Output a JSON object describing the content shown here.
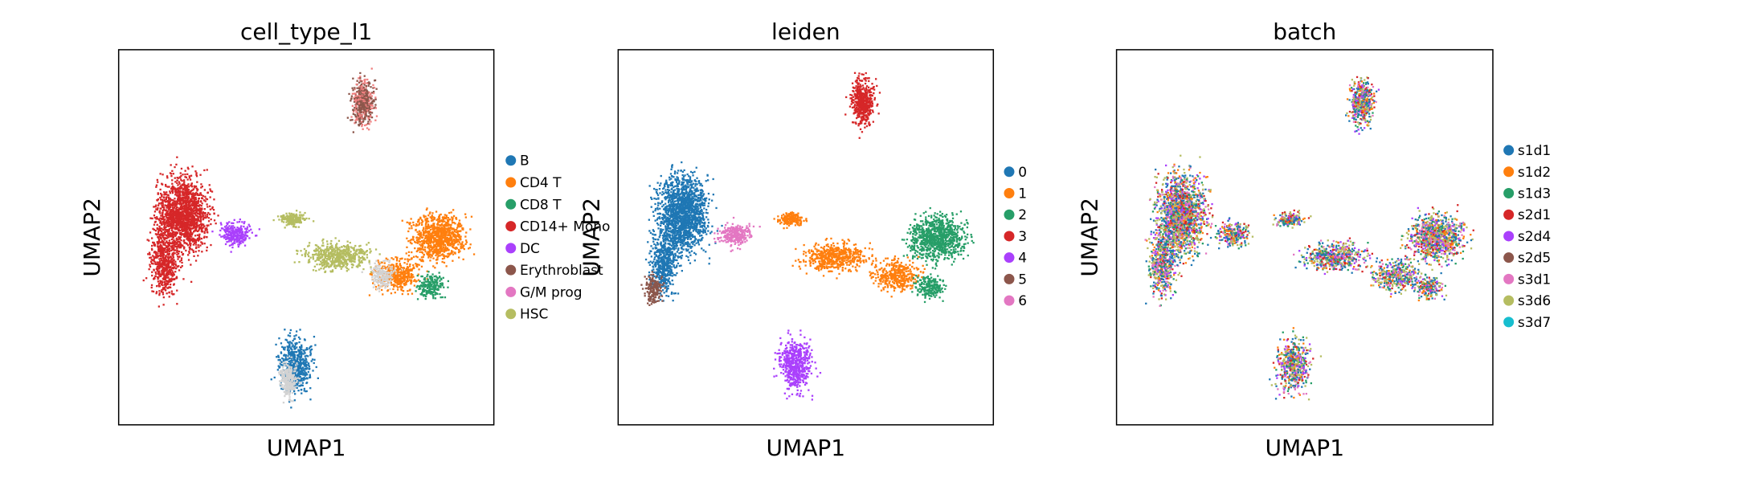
{
  "chart_data": [
    {
      "type": "scatter",
      "title": "cell_type_l1",
      "xlabel": "UMAP1",
      "ylabel": "UMAP2",
      "grid": false,
      "ticks": false,
      "legend_placement": "right",
      "legend": [
        {
          "label": "B",
          "color": "#1f77b4"
        },
        {
          "label": "CD4 T",
          "color": "#ff7f0e"
        },
        {
          "label": "CD8 T",
          "color": "#279e68"
        },
        {
          "label": "CD14+ Mono",
          "color": "#d62728"
        },
        {
          "label": "DC",
          "color": "#aa40fc"
        },
        {
          "label": "Erythroblast",
          "color": "#8c564b"
        },
        {
          "label": "G/M prog",
          "color": "#e377c2"
        },
        {
          "label": "HSC",
          "color": "#b5bd61"
        }
      ]
    },
    {
      "type": "scatter",
      "title": "leiden",
      "xlabel": "UMAP1",
      "ylabel": "UMAP2",
      "grid": false,
      "ticks": false,
      "legend_placement": "right",
      "legend": [
        {
          "label": "0",
          "color": "#1f77b4"
        },
        {
          "label": "1",
          "color": "#ff7f0e"
        },
        {
          "label": "2",
          "color": "#279e68"
        },
        {
          "label": "3",
          "color": "#d62728"
        },
        {
          "label": "4",
          "color": "#aa40fc"
        },
        {
          "label": "5",
          "color": "#8c564b"
        },
        {
          "label": "6",
          "color": "#e377c2"
        }
      ]
    },
    {
      "type": "scatter",
      "title": "batch",
      "xlabel": "UMAP1",
      "ylabel": "UMAP2",
      "grid": false,
      "ticks": false,
      "legend_placement": "right",
      "legend": [
        {
          "label": "s1d1",
          "color": "#1f77b4"
        },
        {
          "label": "s1d2",
          "color": "#ff7f0e"
        },
        {
          "label": "s1d3",
          "color": "#279e68"
        },
        {
          "label": "s2d1",
          "color": "#d62728"
        },
        {
          "label": "s2d4",
          "color": "#aa40fc"
        },
        {
          "label": "s2d5",
          "color": "#8c564b"
        },
        {
          "label": "s3d1",
          "color": "#e377c2"
        },
        {
          "label": "s3d6",
          "color": "#b5bd61"
        },
        {
          "label": "s3d7",
          "color": "#17becf"
        }
      ]
    }
  ]
}
